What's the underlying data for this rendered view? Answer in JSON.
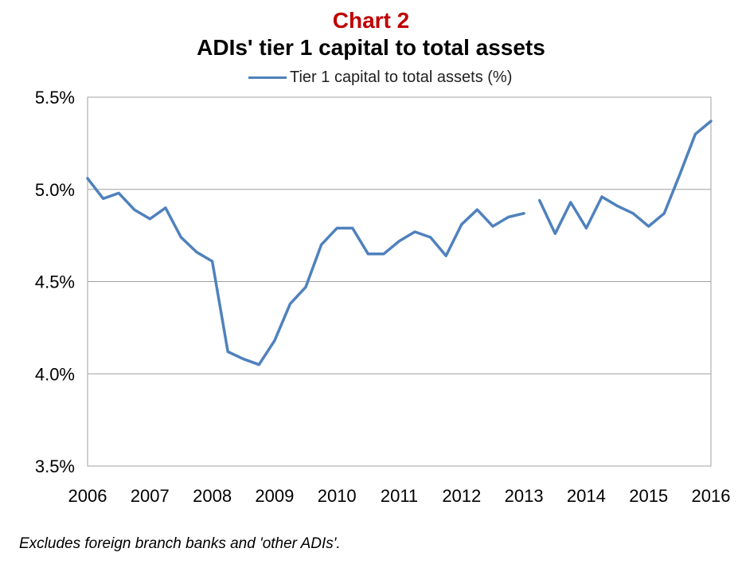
{
  "chart_label": "Chart 2",
  "chart_data": {
    "type": "line",
    "title": "ADIs' tier 1 capital to total assets",
    "xlabel": "",
    "ylabel": "",
    "ylim": [
      3.5,
      5.5
    ],
    "xlim": [
      2006,
      2016
    ],
    "y_ticks": [
      "3.5%",
      "4.0%",
      "4.5%",
      "5.0%",
      "5.5%"
    ],
    "x_ticks": [
      "2006",
      "2007",
      "2008",
      "2009",
      "2010",
      "2011",
      "2012",
      "2013",
      "2014",
      "2015",
      "2016"
    ],
    "grid": true,
    "legend_position": "top-center",
    "series": [
      {
        "name": "Tier 1 capital to total assets (%)",
        "color": "#4f81bd",
        "segments": [
          {
            "x": [
              2006.0,
              2006.25,
              2006.5,
              2006.75,
              2007.0,
              2007.25,
              2007.5,
              2007.75,
              2008.0,
              2008.25,
              2008.5,
              2008.75,
              2009.0,
              2009.25,
              2009.5,
              2009.75,
              2010.0,
              2010.25,
              2010.5,
              2010.75,
              2011.0,
              2011.25,
              2011.5,
              2011.75,
              2012.0,
              2012.25,
              2012.5,
              2012.75,
              2013.0
            ],
            "y": [
              5.06,
              4.95,
              4.98,
              4.89,
              4.84,
              4.9,
              4.74,
              4.66,
              4.61,
              4.12,
              4.08,
              4.05,
              4.18,
              4.38,
              4.47,
              4.7,
              4.79,
              4.79,
              4.65,
              4.65,
              4.72,
              4.77,
              4.74,
              4.64,
              4.81,
              4.89,
              4.8,
              4.85,
              4.87
            ]
          },
          {
            "x": [
              2013.25,
              2013.5,
              2013.75,
              2014.0,
              2014.25,
              2014.5,
              2014.75,
              2015.0,
              2015.25,
              2015.5,
              2015.75,
              2016.0
            ],
            "y": [
              4.94,
              4.76,
              4.93,
              4.79,
              4.96,
              4.91,
              4.87,
              4.8,
              4.87,
              5.08,
              5.3,
              5.37
            ]
          }
        ]
      }
    ]
  },
  "footnote": "Excludes foreign branch banks and 'other ADIs'."
}
